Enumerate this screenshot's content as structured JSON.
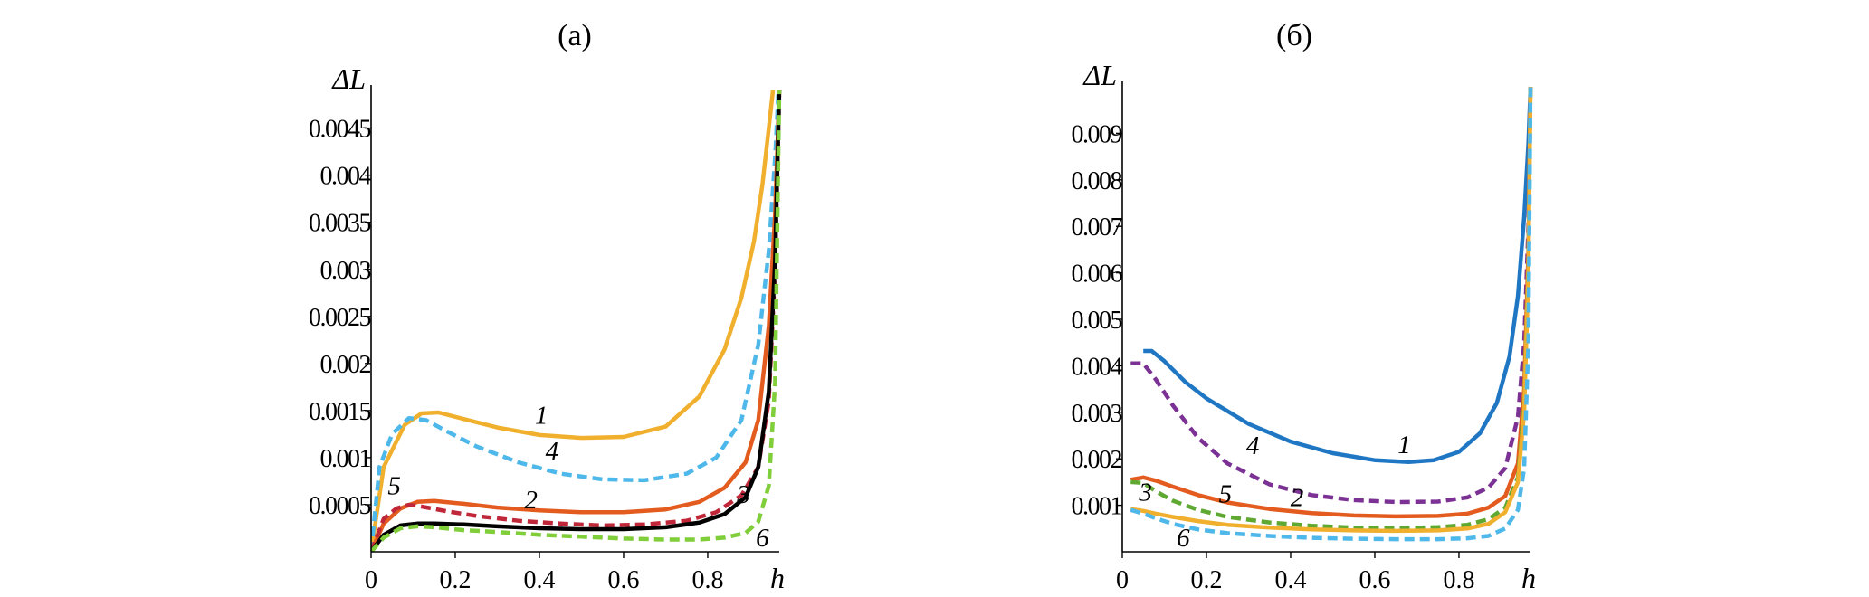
{
  "chart_data": [
    {
      "type": "line",
      "title": "(а)",
      "xlabel": "h",
      "ylabel": "ΔL",
      "xlim": [
        0,
        0.97
      ],
      "ylim": [
        0,
        0.0049
      ],
      "x_ticks": [
        0,
        0.2,
        0.4,
        0.6,
        0.8
      ],
      "x_tick_labels": [
        "0",
        "0.2",
        "0.4",
        "0.6",
        "0.8"
      ],
      "y_ticks": [
        0.0005,
        0.001,
        0.0015,
        0.002,
        0.0025,
        0.003,
        0.0035,
        0.004,
        0.0045
      ],
      "y_tick_labels": [
        "0.0005",
        "0.001",
        "0.0015",
        "0.002",
        "0.0025",
        "0.003",
        "0.0035",
        "0.004",
        "0.0045"
      ],
      "series": [
        {
          "name": "1",
          "color": "#F0B02D",
          "dash": "solid",
          "x": [
            0,
            0.03,
            0.08,
            0.12,
            0.16,
            0.22,
            0.3,
            0.4,
            0.5,
            0.6,
            0.7,
            0.78,
            0.84,
            0.88,
            0.91,
            0.93,
            0.945,
            0.955
          ],
          "y": [
            0,
            0.0009,
            0.00135,
            0.00147,
            0.00148,
            0.00141,
            0.00132,
            0.00124,
            0.00121,
            0.00122,
            0.00133,
            0.00165,
            0.00215,
            0.0027,
            0.0033,
            0.0039,
            0.0045,
            0.0049
          ]
        },
        {
          "name": "4",
          "color": "#4FB8EA",
          "dash": "dashed",
          "x": [
            0,
            0.02,
            0.05,
            0.09,
            0.13,
            0.18,
            0.25,
            0.35,
            0.45,
            0.55,
            0.65,
            0.75,
            0.82,
            0.88,
            0.92,
            0.945,
            0.96,
            0.968
          ],
          "y": [
            0,
            0.0009,
            0.00125,
            0.00142,
            0.0014,
            0.00128,
            0.00112,
            0.00095,
            0.00083,
            0.00077,
            0.00076,
            0.00083,
            0.001,
            0.0014,
            0.0022,
            0.0032,
            0.0042,
            0.0049
          ]
        },
        {
          "name": "2",
          "color": "#E35B1E",
          "dash": "solid",
          "x": [
            0,
            0.03,
            0.07,
            0.11,
            0.15,
            0.22,
            0.3,
            0.4,
            0.5,
            0.6,
            0.7,
            0.78,
            0.84,
            0.89,
            0.92,
            0.945,
            0.96,
            0.97
          ],
          "y": [
            0,
            0.0003,
            0.00046,
            0.00053,
            0.00054,
            0.00051,
            0.00047,
            0.00044,
            0.00042,
            0.00042,
            0.00045,
            0.00053,
            0.00068,
            0.00095,
            0.0014,
            0.0024,
            0.0036,
            0.0049
          ]
        },
        {
          "name": "5",
          "color": "#C0283A",
          "dash": "dashed",
          "x": [
            0,
            0.03,
            0.06,
            0.09,
            0.12,
            0.18,
            0.25,
            0.35,
            0.45,
            0.55,
            0.65,
            0.75,
            0.82,
            0.88,
            0.92,
            0.945,
            0.96,
            0.97
          ],
          "y": [
            0,
            0.00035,
            0.00046,
            0.0005,
            0.00048,
            0.00043,
            0.00038,
            0.00033,
            0.0003,
            0.00028,
            0.00029,
            0.00033,
            0.00042,
            0.0006,
            0.0009,
            0.0016,
            0.003,
            0.0049
          ]
        },
        {
          "name": "3",
          "color": "#000000",
          "dash": "solid",
          "x": [
            0,
            0.03,
            0.07,
            0.11,
            0.15,
            0.22,
            0.3,
            0.4,
            0.5,
            0.6,
            0.7,
            0.78,
            0.84,
            0.89,
            0.92,
            0.945,
            0.96,
            0.97
          ],
          "y": [
            0,
            0.00018,
            0.00028,
            0.0003,
            0.0003,
            0.00029,
            0.00027,
            0.00025,
            0.00024,
            0.00024,
            0.00026,
            0.00031,
            0.0004,
            0.00058,
            0.0009,
            0.0017,
            0.0031,
            0.0049
          ]
        },
        {
          "name": "6",
          "color": "#7FCE3A",
          "dash": "dashed",
          "x": [
            0,
            0.03,
            0.07,
            0.11,
            0.15,
            0.22,
            0.3,
            0.4,
            0.5,
            0.6,
            0.7,
            0.78,
            0.84,
            0.89,
            0.92,
            0.945,
            0.96,
            0.97
          ],
          "y": [
            0,
            0.00015,
            0.00025,
            0.00027,
            0.00026,
            0.00023,
            0.00021,
            0.00018,
            0.00016,
            0.00014,
            0.00013,
            0.00013,
            0.00015,
            0.0002,
            0.00032,
            0.0007,
            0.0018,
            0.0049
          ]
        }
      ],
      "curve_labels": [
        {
          "text": "1",
          "x": 0.405,
          "y": 0.00136
        },
        {
          "text": "4",
          "x": 0.43,
          "y": 0.00098
        },
        {
          "text": "5",
          "x": 0.055,
          "y": 0.00061
        },
        {
          "text": "2",
          "x": 0.38,
          "y": 0.00046
        },
        {
          "text": "3",
          "x": 0.885,
          "y": 0.00052
        },
        {
          "text": "6",
          "x": 0.93,
          "y": 6e-05
        }
      ]
    },
    {
      "type": "line",
      "title": "(б)",
      "xlabel": "h",
      "ylabel": "ΔL",
      "xlim": [
        0,
        0.97
      ],
      "ylim": [
        0,
        0.01
      ],
      "x_ticks": [
        0,
        0.2,
        0.4,
        0.6,
        0.8
      ],
      "x_tick_labels": [
        "0",
        "0.2",
        "0.4",
        "0.6",
        "0.8"
      ],
      "y_ticks": [
        0.001,
        0.002,
        0.003,
        0.004,
        0.005,
        0.006,
        0.007,
        0.008,
        0.009
      ],
      "y_tick_labels": [
        "0.001",
        "0.002",
        "0.003",
        "0.004",
        "0.005",
        "0.006",
        "0.007",
        "0.008",
        "0.009"
      ],
      "series": [
        {
          "name": "1",
          "color": "#1F77C4",
          "dash": "solid",
          "x": [
            0.05,
            0.07,
            0.1,
            0.15,
            0.2,
            0.3,
            0.4,
            0.5,
            0.6,
            0.68,
            0.74,
            0.8,
            0.85,
            0.89,
            0.92,
            0.94,
            0.955,
            0.965,
            0.97
          ],
          "y": [
            0.00432,
            0.00432,
            0.0041,
            0.00365,
            0.0033,
            0.00275,
            0.00237,
            0.00212,
            0.00197,
            0.00193,
            0.00197,
            0.00215,
            0.00255,
            0.0032,
            0.0042,
            0.0055,
            0.0072,
            0.0088,
            0.01
          ]
        },
        {
          "name": "4",
          "color": "#7B3294",
          "dash": "dashed",
          "x": [
            0.02,
            0.05,
            0.08,
            0.12,
            0.18,
            0.25,
            0.35,
            0.45,
            0.55,
            0.65,
            0.75,
            0.82,
            0.87,
            0.91,
            0.94,
            0.955,
            0.965,
            0.97
          ],
          "y": [
            0.00405,
            0.00405,
            0.0037,
            0.00315,
            0.00245,
            0.0019,
            0.00145,
            0.00122,
            0.00111,
            0.00107,
            0.00108,
            0.00117,
            0.00138,
            0.0018,
            0.0029,
            0.0045,
            0.007,
            0.01
          ]
        },
        {
          "name": "2",
          "color": "#E35B1E",
          "dash": "solid",
          "x": [
            0.02,
            0.05,
            0.08,
            0.12,
            0.18,
            0.25,
            0.35,
            0.45,
            0.55,
            0.65,
            0.75,
            0.82,
            0.87,
            0.91,
            0.94,
            0.955,
            0.965,
            0.97
          ],
          "y": [
            0.00155,
            0.0016,
            0.00153,
            0.0014,
            0.00122,
            0.00106,
            0.00092,
            0.00083,
            0.00078,
            0.00076,
            0.00077,
            0.00082,
            0.00095,
            0.0012,
            0.0019,
            0.0035,
            0.0065,
            0.01
          ]
        },
        {
          "name": "5",
          "color": "#5FA832",
          "dash": "dashed",
          "x": [
            0.02,
            0.05,
            0.08,
            0.12,
            0.18,
            0.25,
            0.35,
            0.45,
            0.55,
            0.65,
            0.75,
            0.82,
            0.87,
            0.91,
            0.94,
            0.955,
            0.965,
            0.97
          ],
          "y": [
            0.0015,
            0.00148,
            0.0013,
            0.0011,
            0.0009,
            0.00075,
            0.00063,
            0.00056,
            0.00052,
            0.00051,
            0.00053,
            0.00058,
            0.0007,
            0.00095,
            0.0016,
            0.0032,
            0.0062,
            0.01
          ]
        },
        {
          "name": "3",
          "color": "#F0B02D",
          "dash": "solid",
          "x": [
            0.02,
            0.05,
            0.08,
            0.12,
            0.18,
            0.25,
            0.35,
            0.45,
            0.55,
            0.65,
            0.75,
            0.82,
            0.87,
            0.91,
            0.94,
            0.955,
            0.965,
            0.97
          ],
          "y": [
            0.00092,
            0.00088,
            0.00082,
            0.00075,
            0.00066,
            0.00058,
            0.00052,
            0.00048,
            0.00046,
            0.00045,
            0.00046,
            0.0005,
            0.0006,
            0.00085,
            0.0015,
            0.003,
            0.006,
            0.01
          ]
        },
        {
          "name": "6",
          "color": "#4FB8EA",
          "dash": "dashed",
          "x": [
            0.02,
            0.05,
            0.08,
            0.12,
            0.18,
            0.25,
            0.35,
            0.45,
            0.55,
            0.65,
            0.75,
            0.82,
            0.87,
            0.91,
            0.94,
            0.955,
            0.965,
            0.97
          ],
          "y": [
            0.0009,
            0.00082,
            0.00072,
            0.0006,
            0.00048,
            0.0004,
            0.00034,
            0.0003,
            0.00028,
            0.00027,
            0.00027,
            0.00029,
            0.00034,
            0.0005,
            0.0009,
            0.0018,
            0.0045,
            0.01
          ]
        }
      ],
      "curve_labels": [
        {
          "text": "1",
          "x": 0.67,
          "y": 0.00212
        },
        {
          "text": "4",
          "x": 0.31,
          "y": 0.0021
        },
        {
          "text": "5",
          "x": 0.245,
          "y": 0.00106
        },
        {
          "text": "2",
          "x": 0.415,
          "y": 0.00098
        },
        {
          "text": "3",
          "x": 0.055,
          "y": 0.0011
        },
        {
          "text": "6",
          "x": 0.145,
          "y": 0.00012
        }
      ]
    }
  ]
}
